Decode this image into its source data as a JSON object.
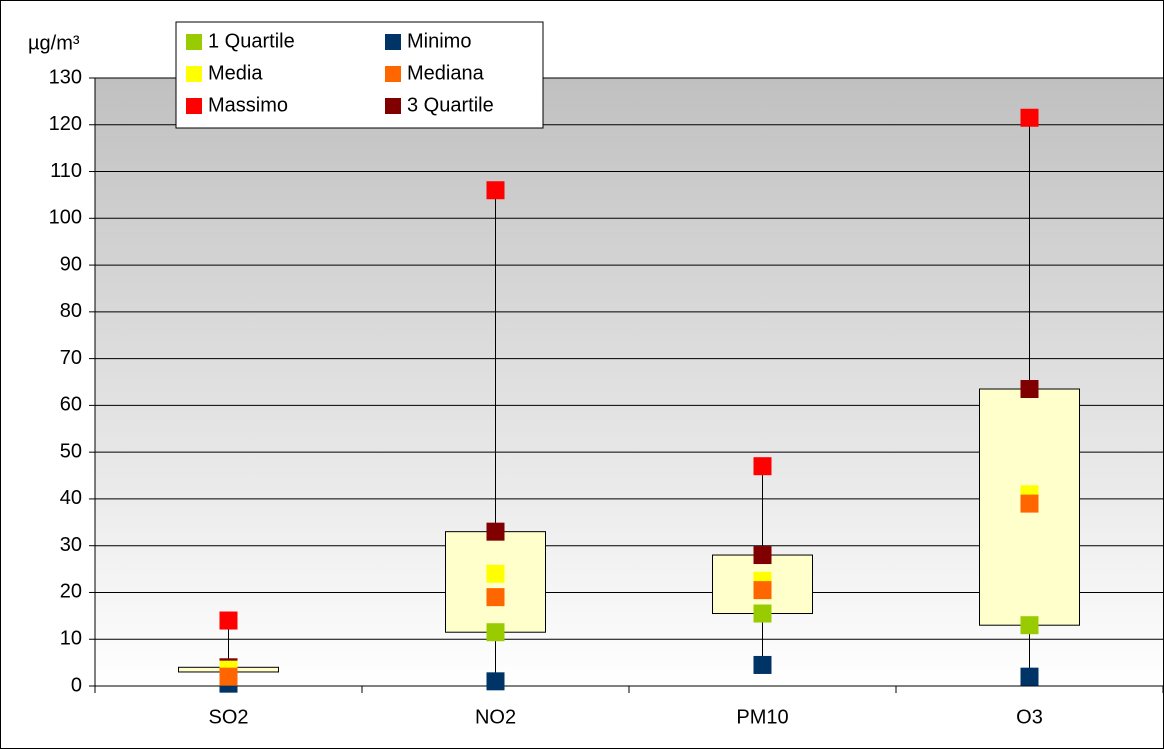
{
  "chart_data": {
    "type": "box-markers",
    "y_label": "µg/m³",
    "categories": [
      "SO2",
      "NO2",
      "PM10",
      "O3"
    ],
    "series": [
      {
        "name": "1 Quartile",
        "color": "#99cc00",
        "values": [
          3,
          11.5,
          15.5,
          13
        ]
      },
      {
        "name": "Minimo",
        "color": "#003366",
        "values": [
          0.5,
          1,
          4.5,
          2
        ]
      },
      {
        "name": "Media",
        "color": "#ffff00",
        "values": [
          3.5,
          24,
          22.5,
          41
        ]
      },
      {
        "name": "Mediana",
        "color": "#ff6600",
        "values": [
          2,
          19,
          20.5,
          39
        ]
      },
      {
        "name": "Massimo",
        "color": "#ff0000",
        "values": [
          14,
          106,
          47,
          121.5
        ]
      },
      {
        "name": "3 Quartile",
        "color": "#800000",
        "values": [
          4,
          33,
          28,
          63.5
        ]
      }
    ],
    "box_color": "#ffffcc",
    "ylim": [
      0,
      130
    ],
    "yticks": [
      0,
      10,
      20,
      30,
      40,
      50,
      60,
      70,
      80,
      90,
      100,
      110,
      120,
      130
    ],
    "grid": true
  }
}
